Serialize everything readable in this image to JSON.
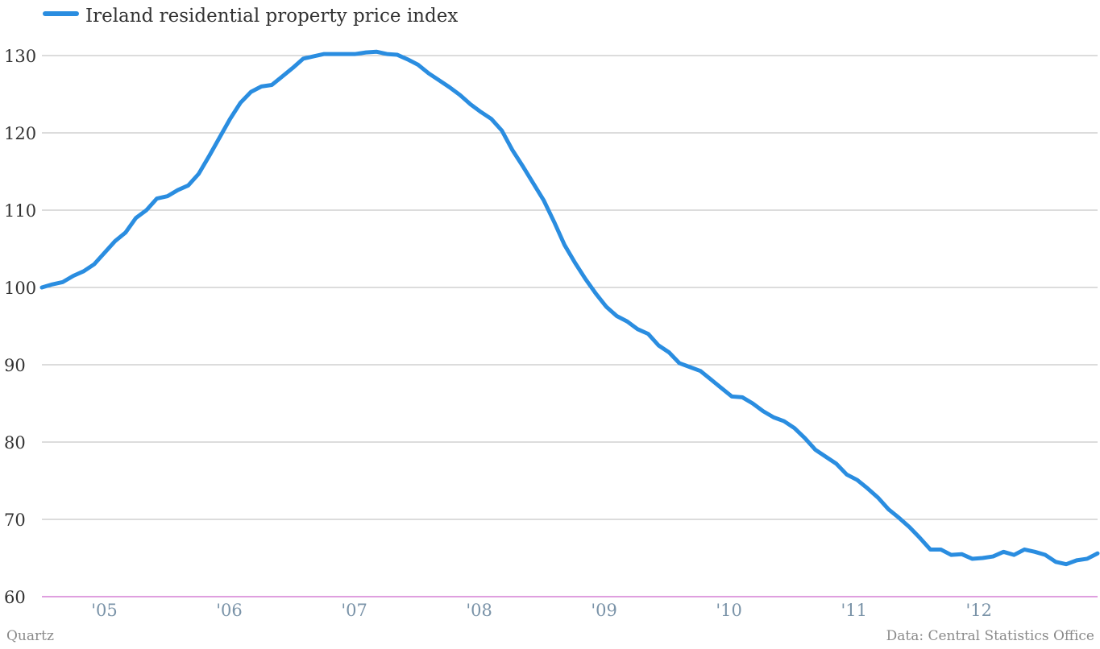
{
  "chart_data": {
    "type": "line",
    "legend": {
      "placement": "top-left"
    },
    "grid": true,
    "ylim": [
      60,
      130
    ],
    "yticks": [
      60,
      70,
      80,
      90,
      100,
      110,
      120,
      130
    ],
    "xlim": [
      0,
      8.45
    ],
    "xticks": [
      {
        "pos": 0.5,
        "label": "'05"
      },
      {
        "pos": 1.5,
        "label": "'06"
      },
      {
        "pos": 2.5,
        "label": "'07"
      },
      {
        "pos": 3.5,
        "label": "'08"
      },
      {
        "pos": 4.5,
        "label": "'09"
      },
      {
        "pos": 5.5,
        "label": "'10"
      },
      {
        "pos": 6.5,
        "label": "'11"
      },
      {
        "pos": 7.5,
        "label": "'12"
      }
    ],
    "series": [
      {
        "name": "Ireland residential property price index",
        "color": "#2a8de0",
        "values": [
          100,
          100.4,
          100.7,
          101.5,
          102.1,
          103,
          104.5,
          106,
          107.1,
          109,
          110,
          111.5,
          111.8,
          112.6,
          113.2,
          114.7,
          117,
          119.4,
          121.8,
          123.9,
          125.3,
          126,
          126.2,
          127.3,
          128.4,
          129.6,
          129.9,
          130.2,
          130.2,
          130.2,
          130.2,
          130.4,
          130.5,
          130.2,
          130.1,
          129.5,
          128.8,
          127.7,
          126.8,
          125.9,
          124.9,
          123.7,
          122.7,
          121.8,
          120.3,
          117.8,
          115.7,
          113.5,
          111.3,
          108.5,
          105.5,
          103.2,
          101.1,
          99.2,
          97.5,
          96.3,
          95.6,
          94.6,
          94,
          92.5,
          91.6,
          90.2,
          89.7,
          89.2,
          88.1,
          87,
          85.9,
          85.8,
          85,
          84,
          83.2,
          82.7,
          81.8,
          80.5,
          79,
          78.1,
          77.2,
          75.8,
          75.1,
          74,
          72.8,
          71.3,
          70.2,
          69,
          67.6,
          66.1,
          66.1,
          65.4,
          65.5,
          64.9,
          65,
          65.2,
          65.8,
          65.4,
          66.1,
          65.8,
          65.4,
          64.5,
          64.2,
          64.7,
          64.9,
          65.6
        ]
      }
    ]
  },
  "footer": {
    "source_left": "Quartz",
    "source_right": "Data: Central Statistics Office"
  }
}
